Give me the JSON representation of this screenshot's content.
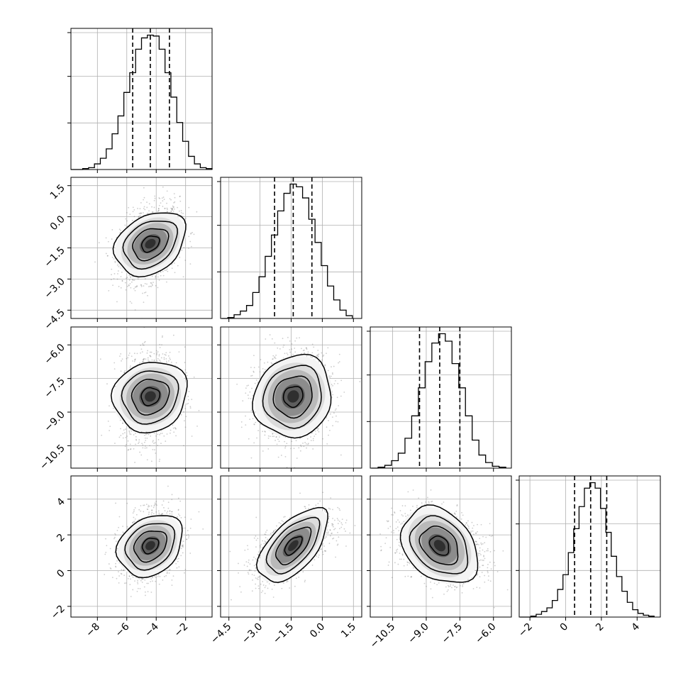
{
  "figure": {
    "type": "corner",
    "grid": true,
    "quantile_lines": "dashed",
    "colors": {
      "line": "#000000",
      "grid": "#b0b0b0",
      "scatter": "#6f6f6f"
    }
  },
  "chart_data": [
    {
      "type": "histogram",
      "panel": "diag-1",
      "x": [
        -9.6,
        -9.2,
        -8.8,
        -8.4,
        -8.0,
        -7.6,
        -7.2,
        -6.8,
        -6.4,
        -6.0,
        -5.6,
        -5.2,
        -4.8,
        -4.4,
        -4.0,
        -3.6,
        -3.2,
        -2.8,
        -2.4,
        -2.0,
        -1.6,
        -1.2,
        -0.8,
        -0.4
      ],
      "values": [
        0,
        0,
        1,
        2,
        6,
        12,
        22,
        38,
        57,
        82,
        103,
        128,
        140,
        143,
        142,
        128,
        103,
        77,
        50,
        30,
        14,
        6,
        2,
        1
      ],
      "quantiles": [
        -5.6,
        -4.4,
        -3.1
      ],
      "xlim": [
        -9.8,
        -0.2
      ],
      "xticks": [
        -8,
        -6,
        -4,
        -2
      ]
    },
    {
      "type": "scatter-contour",
      "panel": "row2-col1",
      "mean": [
        -4.4,
        -1.3
      ],
      "sd": [
        1.0,
        0.9
      ],
      "corr": 0.3,
      "xlim": [
        -9.8,
        -0.2
      ],
      "ylim": [
        -4.9,
        1.9
      ],
      "yticks": [
        "1.5",
        "0.0",
        "−1.5",
        "−3.0",
        "−4.5"
      ]
    },
    {
      "type": "histogram",
      "panel": "diag-2",
      "x": [
        -4.7,
        -4.4,
        -4.1,
        -3.8,
        -3.5,
        -3.2,
        -2.9,
        -2.6,
        -2.3,
        -2.0,
        -1.7,
        -1.4,
        -1.1,
        -0.8,
        -0.5,
        -0.2,
        0.1,
        0.4,
        0.7,
        1.0,
        1.3
      ],
      "values": [
        0,
        1,
        4,
        8,
        14,
        28,
        45,
        67,
        90,
        116,
        135,
        145,
        142,
        130,
        107,
        82,
        57,
        35,
        20,
        9,
        3
      ],
      "quantiles": [
        -2.3,
        -1.4,
        -0.5
      ],
      "xlim": [
        -4.9,
        1.9
      ],
      "xticks": [
        "−4.5",
        "−3.0",
        "−1.5",
        "0.0",
        "1.5"
      ]
    },
    {
      "type": "scatter-contour",
      "panel": "row3-col1",
      "mean": [
        -4.4,
        -8.3
      ],
      "sd": [
        1.0,
        0.95
      ],
      "corr": 0.1,
      "xlim": [
        -9.8,
        -0.2
      ],
      "ylim": [
        -11.5,
        -5.2
      ],
      "yticks": [
        "−6.0",
        "−7.5",
        "−9.0",
        "−10.5"
      ]
    },
    {
      "type": "scatter-contour",
      "panel": "row3-col2",
      "mean": [
        -1.4,
        -8.3
      ],
      "sd": [
        0.9,
        0.95
      ],
      "corr": 0.1,
      "xlim": [
        -4.9,
        1.9
      ],
      "ylim": [
        -11.5,
        -5.2
      ]
    },
    {
      "type": "histogram",
      "panel": "diag-3",
      "x": [
        -11.3,
        -11.0,
        -10.7,
        -10.4,
        -10.1,
        -9.8,
        -9.5,
        -9.2,
        -8.9,
        -8.6,
        -8.3,
        -8.0,
        -7.7,
        -7.4,
        -7.1,
        -6.8,
        -6.5,
        -6.2,
        -5.9,
        -5.6
      ],
      "values": [
        0,
        1,
        3,
        8,
        16,
        32,
        56,
        86,
        114,
        134,
        144,
        136,
        112,
        86,
        56,
        30,
        14,
        6,
        2,
        1
      ],
      "quantiles": [
        -9.3,
        -8.4,
        -7.5
      ],
      "xlim": [
        -11.5,
        -5.2
      ],
      "xticks": [
        "−10.5",
        "−9.0",
        "−7.5",
        "−6.0"
      ]
    },
    {
      "type": "scatter-contour",
      "panel": "row4-col1",
      "mean": [
        -4.4,
        1.4
      ],
      "sd": [
        1.0,
        0.95
      ],
      "corr": 0.25,
      "xlim": [
        -9.8,
        -0.2
      ],
      "ylim": [
        -2.6,
        5.3
      ],
      "yticks": [
        "4",
        "2",
        "0",
        "−2"
      ]
    },
    {
      "type": "scatter-contour",
      "panel": "row4-col2",
      "mean": [
        -1.4,
        1.4
      ],
      "sd": [
        0.9,
        0.95
      ],
      "corr": 0.6,
      "xlim": [
        -4.9,
        1.9
      ],
      "ylim": [
        -2.6,
        5.3
      ],
      "xticks": [
        "−4.5",
        "−3.0",
        "−1.5",
        "0.0",
        "1.5"
      ]
    },
    {
      "type": "scatter-contour",
      "panel": "row4-col3",
      "mean": [
        -8.4,
        1.4
      ],
      "sd": [
        0.95,
        0.95
      ],
      "corr": -0.3,
      "xlim": [
        -11.5,
        -5.2
      ],
      "ylim": [
        -2.6,
        5.3
      ],
      "xticks": [
        "−10.5",
        "−9.0",
        "−7.5",
        "−6.0"
      ]
    },
    {
      "type": "histogram",
      "panel": "diag-4",
      "x": [
        -2.4,
        -2.1,
        -1.8,
        -1.5,
        -1.2,
        -0.9,
        -0.6,
        -0.3,
        0.0,
        0.3,
        0.6,
        0.9,
        1.2,
        1.5,
        1.8,
        2.1,
        2.4,
        2.7,
        3.0,
        3.3,
        3.6,
        3.9,
        4.2,
        4.5,
        4.8
      ],
      "values": [
        0,
        0,
        1,
        3,
        6,
        10,
        18,
        30,
        46,
        70,
        96,
        120,
        140,
        146,
        140,
        118,
        92,
        66,
        44,
        28,
        16,
        8,
        4,
        2,
        1
      ],
      "quantiles": [
        0.5,
        1.4,
        2.3
      ],
      "xlim": [
        -2.6,
        5.3
      ],
      "xticks": [
        "−2",
        "0",
        "2",
        "4"
      ]
    }
  ],
  "axes": {
    "col1_xticks": [
      "−8",
      "−6",
      "−4",
      "−2"
    ],
    "col2_xticks": [
      "−4.5",
      "−3.0",
      "−1.5",
      "0.0",
      "1.5"
    ],
    "col3_xticks": [
      "−10.5",
      "−9.0",
      "−7.5",
      "−6.0"
    ],
    "col4_xticks": [
      "−2",
      "0",
      "2",
      "4"
    ],
    "row2_yticks": [
      "1.5",
      "0.0",
      "−1.5",
      "−3.0",
      "−4.5"
    ],
    "row3_yticks": [
      "−6.0",
      "−7.5",
      "−9.0",
      "−10.5"
    ],
    "row4_yticks": [
      "4",
      "2",
      "0",
      "−2"
    ]
  }
}
